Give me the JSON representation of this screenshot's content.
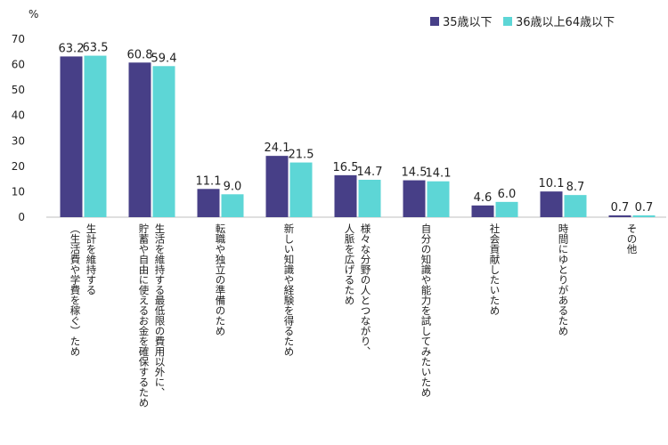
{
  "chart_data": {
    "type": "bar",
    "unit_label": "%",
    "ylim": [
      0,
      70
    ],
    "yticks": [
      0,
      10,
      20,
      30,
      40,
      50,
      60,
      70
    ],
    "grid": false,
    "legend_position": "top-right",
    "categories": [
      [
        "生計を維持する",
        "（生活費や学費を稼ぐ）ため"
      ],
      [
        "生活を維持する最低限の費用以外に、",
        "貯蓄や自由に使えるお金を確保するため"
      ],
      [
        "転職や独立の準備のため"
      ],
      [
        "新しい知識や経験を得るため"
      ],
      [
        "様々な分野の人とつながり、",
        "人脈を広げるため"
      ],
      [
        "自分の知識や能力を試してみたいため"
      ],
      [
        "社会貢献したいため"
      ],
      [
        "時間にゆとりがあるため"
      ],
      [
        "その他"
      ]
    ],
    "series": [
      {
        "name": "35歳以下",
        "color": "#473f87",
        "values": [
          63.2,
          60.8,
          11.1,
          24.1,
          16.5,
          14.5,
          4.6,
          10.1,
          0.7
        ]
      },
      {
        "name": "36歳以上64歳以下",
        "color": "#5dd6d6",
        "values": [
          63.5,
          59.4,
          9.0,
          21.5,
          14.7,
          14.1,
          6.0,
          8.7,
          0.7
        ]
      }
    ]
  }
}
